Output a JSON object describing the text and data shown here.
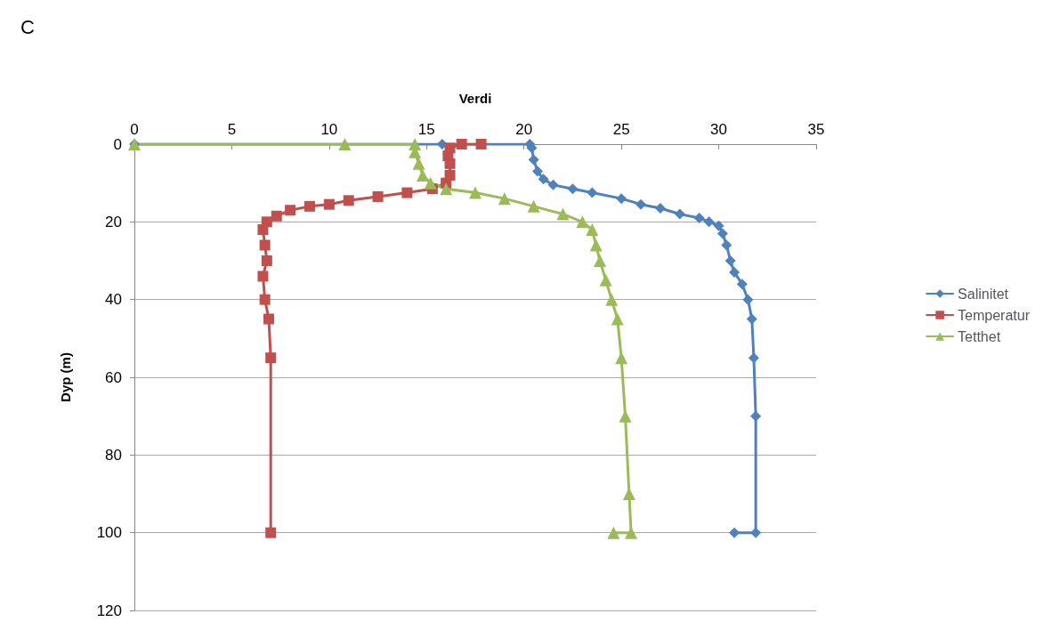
{
  "chart_data": {
    "type": "line",
    "title": "C",
    "xlabel": "Verdi",
    "ylabel": "Dyp (m)",
    "xlim": [
      0,
      35
    ],
    "xticks": [
      0,
      5,
      10,
      15,
      20,
      25,
      30,
      35
    ],
    "ylim": [
      120,
      0
    ],
    "yticks": [
      0,
      20,
      40,
      60,
      80,
      100,
      120
    ],
    "grid": "y",
    "legend": "right",
    "line_style": "solid",
    "series": [
      {
        "name": "Salinitet",
        "color": "#4f81bd",
        "marker": "diamond",
        "x": [
          0,
          15.8,
          20.3,
          20.4,
          20.5,
          20.7,
          21,
          21.5,
          22.5,
          23.5,
          25,
          26,
          27,
          28,
          29,
          29.5,
          30,
          30.2,
          30.4,
          30.6,
          30.8,
          31.2,
          31.5,
          31.7,
          31.8,
          31.9,
          31.9,
          30.8
        ],
        "values": [
          0,
          0,
          0,
          1,
          4,
          7,
          9,
          10.5,
          11.5,
          12.5,
          14,
          15.5,
          16.5,
          18,
          19,
          20,
          21,
          23,
          26,
          30,
          33,
          36,
          40,
          45,
          55,
          70,
          100,
          100
        ]
      },
      {
        "name": "Temperatur",
        "color": "#c0504d",
        "marker": "square",
        "x": [
          17.8,
          16.8,
          16.2,
          16.1,
          16.2,
          16.2,
          16,
          15.3,
          14,
          12.5,
          11,
          10,
          9,
          8,
          7.3,
          6.8,
          6.6,
          6.7,
          6.8,
          6.6,
          6.7,
          6.9,
          7,
          7
        ],
        "values": [
          0,
          0,
          1,
          3,
          5,
          8,
          10,
          11.5,
          12.5,
          13.5,
          14.5,
          15.5,
          16,
          17,
          18.5,
          20,
          22,
          26,
          30,
          34,
          40,
          45,
          55,
          100
        ]
      },
      {
        "name": "Tetthet",
        "color": "#9bbb59",
        "marker": "triangle",
        "x": [
          0,
          10.8,
          14.4,
          14.4,
          14.6,
          14.8,
          15.2,
          16,
          17.5,
          19,
          20.5,
          22,
          23,
          23.5,
          23.7,
          23.9,
          24.2,
          24.5,
          24.8,
          25,
          25.2,
          25.4,
          25.5,
          24.6
        ],
        "values": [
          0,
          0,
          0,
          2,
          5,
          8,
          10,
          11.5,
          12.5,
          14,
          16,
          18,
          20,
          22,
          26,
          30,
          35,
          40,
          45,
          55,
          70,
          90,
          100,
          100
        ]
      }
    ]
  }
}
